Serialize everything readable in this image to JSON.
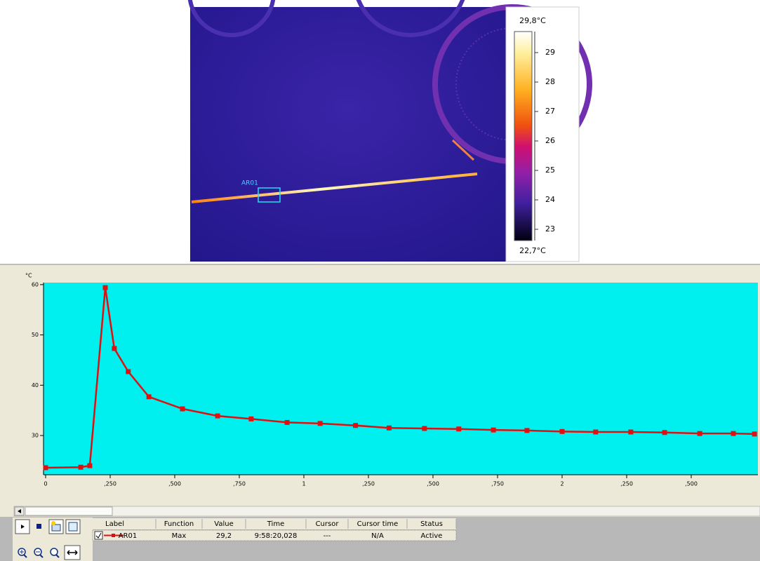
{
  "thermal_image": {
    "roi_label": "AR01",
    "colorbar": {
      "max_label": "29,8°C",
      "min_label": "22,7°C",
      "ticks": [
        29,
        28,
        27,
        26,
        25,
        24,
        23
      ]
    }
  },
  "chart_data": {
    "type": "line",
    "y_unit_label": "°C",
    "x": [
      0,
      0.136,
      0.171,
      0.231,
      0.266,
      0.32,
      0.4,
      0.53,
      0.666,
      0.796,
      0.935,
      1.063,
      1.2,
      1.33,
      1.467,
      1.6,
      1.734,
      1.864,
      2.0,
      2.13,
      2.266,
      2.397,
      2.533,
      2.663,
      2.745
    ],
    "series": [
      {
        "color": "#e01010",
        "values": [
          23.6,
          23.7,
          24.0,
          59.4,
          47.3,
          42.7,
          37.7,
          35.3,
          33.9,
          33.3,
          32.6,
          32.4,
          32.0,
          31.5,
          31.4,
          31.3,
          31.1,
          31.0,
          30.8,
          30.7,
          30.7,
          30.6,
          30.4,
          30.4,
          30.3
        ]
      }
    ],
    "xlim": [
      0,
      2.75
    ],
    "ylim": [
      22.2,
      60.4
    ],
    "xticks": [
      0,
      {
        "value": 0.25,
        "label": ",250"
      },
      {
        "value": 0.5,
        "label": ",500"
      },
      {
        "value": 0.75,
        "label": ",750"
      },
      1,
      {
        "value": 1.25,
        "label": ",250"
      },
      {
        "value": 1.5,
        "label": ",500"
      },
      {
        "value": 1.75,
        "label": ",750"
      },
      2,
      {
        "value": 2.25,
        "label": ",250"
      },
      {
        "value": 2.5,
        "label": ",500"
      }
    ],
    "yticks": [
      30,
      40,
      50,
      60
    ],
    "background": "#00f0f0"
  },
  "table": {
    "headers": [
      "Label",
      "Function",
      "Value",
      "Time",
      "Cursor",
      "Cursor time",
      "Status"
    ],
    "rows": [
      [
        "AR01",
        "Max",
        "29,2",
        "9:58:20,028",
        "---",
        "N/A",
        "Active"
      ]
    ]
  }
}
